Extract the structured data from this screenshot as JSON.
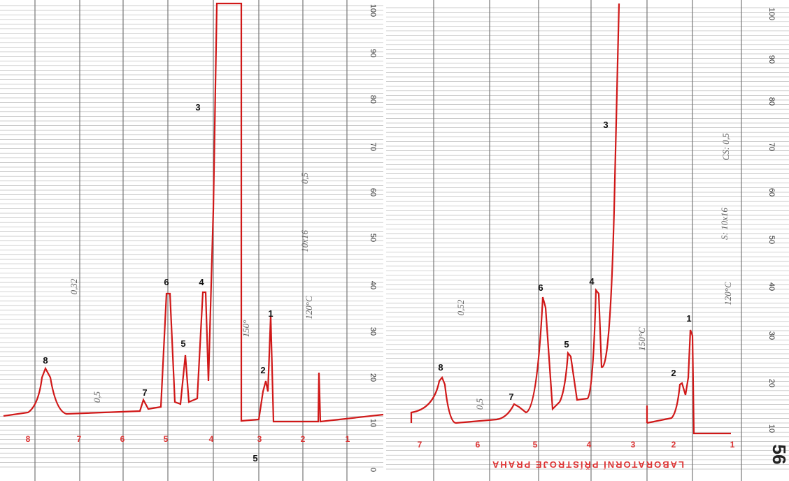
{
  "left_panel": {
    "x_scale": [
      "8",
      "7",
      "6",
      "5",
      "4",
      "3",
      "2",
      "1"
    ],
    "y_scale": [
      "100",
      "90",
      "80",
      "70",
      "60",
      "50",
      "40",
      "30",
      "20",
      "10",
      "0"
    ],
    "peaks": [
      "1",
      "2",
      "3",
      "4",
      "5",
      "6",
      "7",
      "8"
    ],
    "notes": [
      "0,32",
      "0,5",
      "150°",
      "120°C",
      "10x16",
      "0,5"
    ],
    "footer": "5"
  },
  "right_panel": {
    "x_scale": [
      "7",
      "6",
      "5",
      "4",
      "3",
      "2",
      "1"
    ],
    "y_scale": [
      "100",
      "90",
      "80",
      "70",
      "60",
      "50",
      "40",
      "30",
      "20",
      "10"
    ],
    "peaks": [
      "1",
      "2",
      "3",
      "4",
      "5",
      "6",
      "7",
      "8"
    ],
    "notes": [
      "0,52",
      "0,5",
      "150°C",
      "120°C",
      "S: 10x16",
      "CS: 0,5"
    ],
    "footer": {
      "text": "LABORATORNÍ PŘÍSTROJE PRAHA",
      "number": "56"
    }
  }
}
